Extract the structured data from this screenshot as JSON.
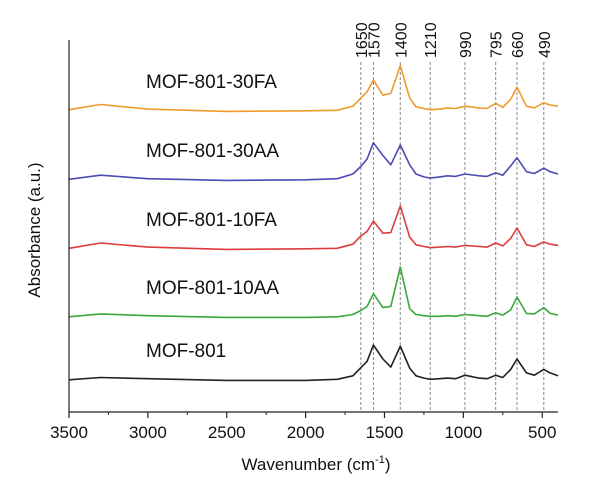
{
  "chart_data": {
    "type": "line",
    "title": "",
    "xlabel": "Wavenumber (cm",
    "xlabel_sup": "-1",
    "xlabel_tail": ")",
    "ylabel": "Absorbance (a.u.)",
    "xlim": [
      3500,
      400
    ],
    "x_reversed": true,
    "xticks": [
      3500,
      3000,
      2500,
      2000,
      1500,
      1000,
      500
    ],
    "y_ticks_shown": false,
    "grid": false,
    "legend": "none (series labelled directly above each trace)",
    "peak_lines": {
      "style": "dashed vertical reference lines",
      "color": "#888888",
      "positions": [
        1650,
        1570,
        1400,
        1210,
        990,
        795,
        660,
        490
      ],
      "labels": [
        "1650",
        "1570",
        "1400",
        "1210",
        "990",
        "795",
        "660",
        "490"
      ]
    },
    "series": [
      {
        "name": "MOF-801-30FA",
        "color": "#ef9a2c",
        "offset": 4,
        "x": [
          3500,
          3300,
          3000,
          2500,
          2000,
          1800,
          1700,
          1650,
          1610,
          1570,
          1510,
          1460,
          1400,
          1340,
          1300,
          1250,
          1210,
          1150,
          1100,
          1050,
          990,
          900,
          850,
          795,
          750,
          700,
          660,
          600,
          550,
          490,
          450,
          400
        ],
        "y": [
          0.04,
          0.13,
          0.05,
          0.01,
          0.02,
          0.03,
          0.1,
          0.24,
          0.35,
          0.55,
          0.29,
          0.32,
          0.8,
          0.24,
          0.09,
          0.06,
          0.04,
          0.05,
          0.07,
          0.06,
          0.1,
          0.07,
          0.06,
          0.15,
          0.08,
          0.22,
          0.43,
          0.1,
          0.07,
          0.16,
          0.12,
          0.1
        ]
      },
      {
        "name": "MOF-801-30AA",
        "color": "#4b4bb4",
        "offset": 3,
        "x": [
          3500,
          3300,
          3000,
          2500,
          2000,
          1800,
          1700,
          1650,
          1610,
          1570,
          1510,
          1460,
          1400,
          1340,
          1300,
          1250,
          1210,
          1150,
          1100,
          1050,
          990,
          900,
          850,
          795,
          750,
          700,
          660,
          600,
          550,
          490,
          450,
          400
        ],
        "y": [
          0.03,
          0.1,
          0.04,
          0.01,
          0.02,
          0.04,
          0.12,
          0.25,
          0.38,
          0.66,
          0.44,
          0.28,
          0.62,
          0.28,
          0.12,
          0.07,
          0.05,
          0.07,
          0.09,
          0.08,
          0.12,
          0.09,
          0.08,
          0.14,
          0.1,
          0.26,
          0.4,
          0.16,
          0.13,
          0.22,
          0.16,
          0.12
        ]
      },
      {
        "name": "MOF-801-10FA",
        "color": "#dc3c3c",
        "offset": 2,
        "x": [
          3500,
          3300,
          3000,
          2500,
          2000,
          1800,
          1700,
          1650,
          1610,
          1570,
          1510,
          1460,
          1400,
          1340,
          1300,
          1250,
          1210,
          1150,
          1100,
          1050,
          990,
          900,
          850,
          795,
          750,
          700,
          660,
          600,
          550,
          490,
          450,
          400
        ],
        "y": [
          0.03,
          0.12,
          0.05,
          0.01,
          0.02,
          0.03,
          0.1,
          0.24,
          0.32,
          0.5,
          0.29,
          0.3,
          0.76,
          0.22,
          0.09,
          0.06,
          0.04,
          0.05,
          0.06,
          0.05,
          0.08,
          0.06,
          0.05,
          0.12,
          0.07,
          0.2,
          0.38,
          0.09,
          0.06,
          0.14,
          0.1,
          0.08
        ]
      },
      {
        "name": "MOF-801-10AA",
        "color": "#3aa83a",
        "offset": 1,
        "x": [
          3500,
          3300,
          3000,
          2500,
          2000,
          1800,
          1700,
          1650,
          1610,
          1570,
          1510,
          1460,
          1400,
          1340,
          1300,
          1250,
          1210,
          1150,
          1100,
          1050,
          990,
          900,
          850,
          795,
          750,
          700,
          660,
          600,
          550,
          490,
          450,
          400
        ],
        "y": [
          0.02,
          0.07,
          0.04,
          0.01,
          0.01,
          0.02,
          0.06,
          0.13,
          0.2,
          0.42,
          0.18,
          0.2,
          0.88,
          0.16,
          0.06,
          0.04,
          0.03,
          0.03,
          0.04,
          0.03,
          0.06,
          0.04,
          0.03,
          0.09,
          0.05,
          0.14,
          0.36,
          0.08,
          0.07,
          0.18,
          0.08,
          0.05
        ]
      },
      {
        "name": "MOF-801",
        "color": "#222222",
        "offset": 0,
        "x": [
          3500,
          3300,
          3000,
          2500,
          2000,
          1800,
          1700,
          1650,
          1610,
          1570,
          1510,
          1460,
          1400,
          1340,
          1300,
          1250,
          1210,
          1150,
          1100,
          1050,
          990,
          900,
          850,
          795,
          750,
          700,
          660,
          600,
          550,
          490,
          450,
          400
        ],
        "y": [
          0.02,
          0.06,
          0.04,
          0.01,
          0.01,
          0.03,
          0.09,
          0.23,
          0.34,
          0.62,
          0.38,
          0.24,
          0.6,
          0.22,
          0.09,
          0.05,
          0.03,
          0.04,
          0.05,
          0.04,
          0.1,
          0.05,
          0.04,
          0.1,
          0.06,
          0.2,
          0.38,
          0.14,
          0.1,
          0.2,
          0.14,
          0.09
        ]
      }
    ]
  }
}
